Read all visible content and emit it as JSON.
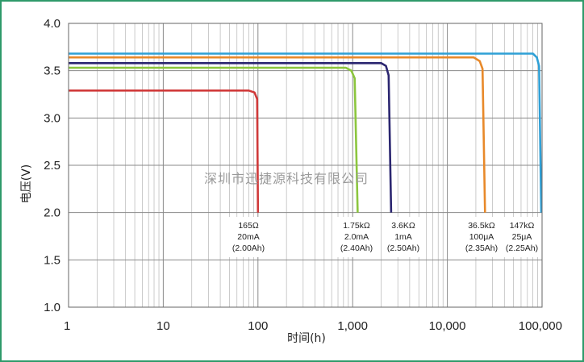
{
  "chart_data": {
    "type": "line",
    "title": "",
    "xlabel": "时间(h)",
    "ylabel": "电压(V)",
    "x_scale": "log",
    "xlim": [
      1,
      100000
    ],
    "ylim": [
      1.0,
      4.0
    ],
    "grid": true,
    "x_ticks": [
      "1",
      "10",
      "100",
      "1,000",
      "10,000",
      "100,000"
    ],
    "y_ticks": [
      "1.0",
      "1.5",
      "2.0",
      "2.5",
      "3.0",
      "3.5",
      "4.0"
    ],
    "series": [
      {
        "color": "#d03a3a",
        "label_lines": [
          "165Ω",
          "20mA",
          "(2.00Ah)"
        ],
        "points": [
          [
            1,
            3.29
          ],
          [
            80,
            3.29
          ],
          [
            92,
            3.27
          ],
          [
            98,
            3.2
          ],
          [
            100,
            2.0
          ]
        ]
      },
      {
        "color": "#8cc63e",
        "label_lines": [
          "1.75kΩ",
          "2.0mA",
          "(2.40Ah)"
        ],
        "points": [
          [
            1,
            3.53
          ],
          [
            850,
            3.53
          ],
          [
            970,
            3.5
          ],
          [
            1050,
            3.42
          ],
          [
            1130,
            2.0
          ]
        ]
      },
      {
        "color": "#2b2670",
        "label_lines": [
          "3.6KΩ",
          "1mA",
          "(2.50Ah)"
        ],
        "points": [
          [
            1,
            3.58
          ],
          [
            2000,
            3.58
          ],
          [
            2250,
            3.55
          ],
          [
            2400,
            3.45
          ],
          [
            2550,
            2.0
          ]
        ]
      },
      {
        "color": "#e8892a",
        "label_lines": [
          "36.5kΩ",
          "100μA",
          "(2.35Ah)"
        ],
        "points": [
          [
            1,
            3.64
          ],
          [
            19000,
            3.64
          ],
          [
            22000,
            3.6
          ],
          [
            23500,
            3.52
          ],
          [
            25000,
            2.0
          ]
        ]
      },
      {
        "color": "#2fa0d6",
        "label_lines": [
          "147kΩ",
          "25μA",
          "(2.25Ah)"
        ],
        "points": [
          [
            1,
            3.68
          ],
          [
            80000,
            3.68
          ],
          [
            88000,
            3.64
          ],
          [
            93000,
            3.55
          ],
          [
            98000,
            2.0
          ]
        ]
      }
    ]
  },
  "watermark": "深圳市迅捷源科技有限公司"
}
